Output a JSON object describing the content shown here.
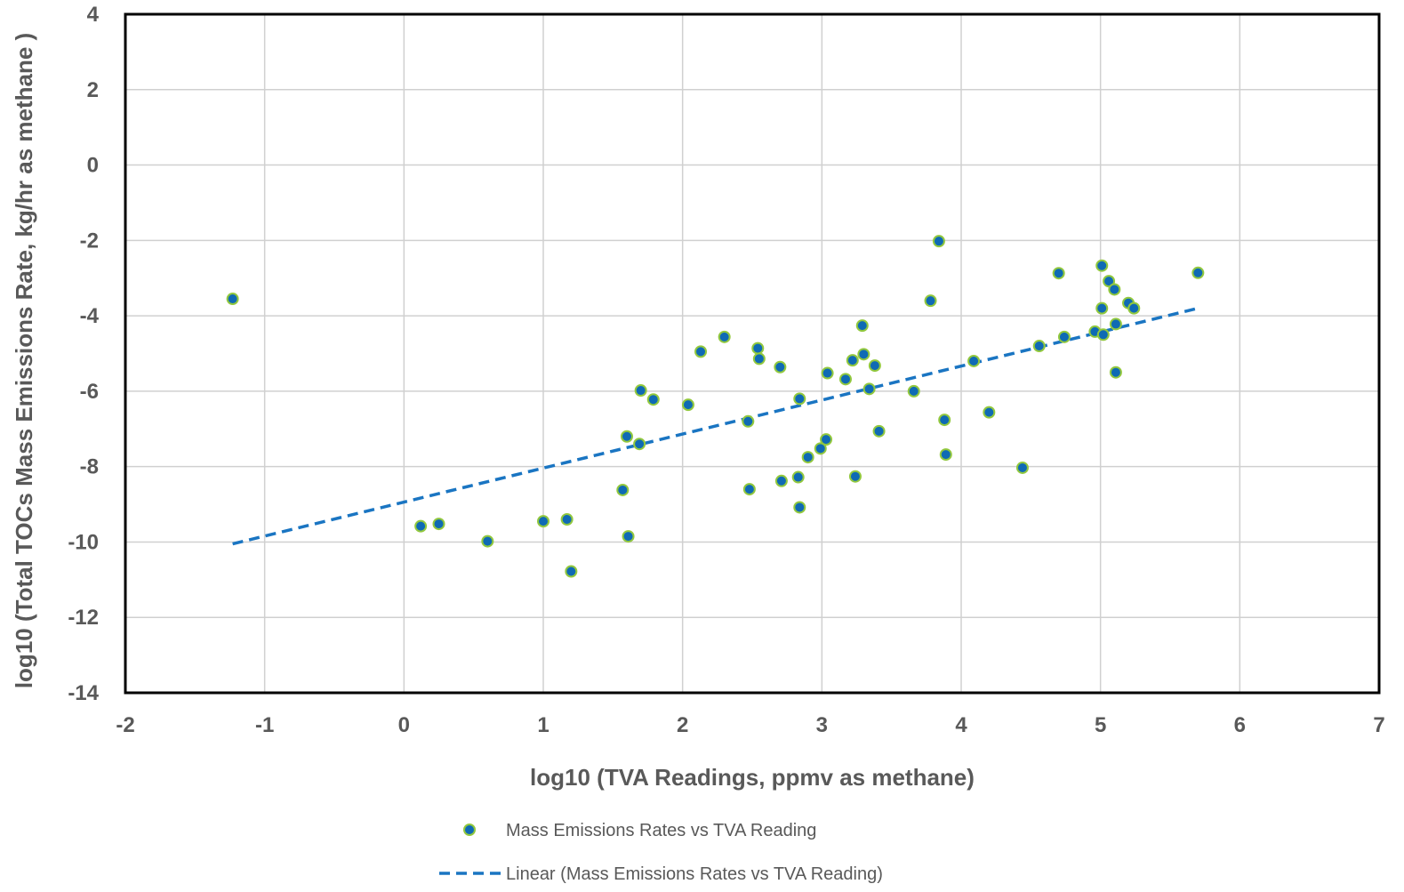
{
  "chart_data": {
    "type": "scatter",
    "title": "",
    "xlabel": "log10 (TVA Readings, ppmv as methane)",
    "ylabel": "log10 (Total TOCs Mass Emissions Rate, kg/hr as methane )",
    "xlim": [
      -2,
      7
    ],
    "ylim": [
      -14,
      4
    ],
    "x_ticks": [
      "-2",
      "-1",
      "0",
      "1",
      "2",
      "3",
      "4",
      "5",
      "6",
      "7"
    ],
    "y_ticks": [
      "4",
      "2",
      "0",
      "-2",
      "-4",
      "-6",
      "-8",
      "-10",
      "-12",
      "-14"
    ],
    "grid": true,
    "legend_position": "bottom",
    "colors": {
      "marker_fill": "#0f6ab4",
      "marker_stroke": "#92c83e",
      "trendline": "#1a75c2",
      "grid": "#d0d0d0",
      "plot_border": "#000000",
      "text": "#595959"
    },
    "series": [
      {
        "name": "Mass Emissions Rates vs TVA Reading",
        "points": [
          [
            -1.23,
            -3.55
          ],
          [
            0.12,
            -9.58
          ],
          [
            0.25,
            -9.52
          ],
          [
            0.6,
            -9.98
          ],
          [
            1.0,
            -9.45
          ],
          [
            1.17,
            -9.4
          ],
          [
            1.2,
            -10.78
          ],
          [
            1.57,
            -8.62
          ],
          [
            1.6,
            -7.2
          ],
          [
            1.61,
            -9.85
          ],
          [
            1.69,
            -7.4
          ],
          [
            1.7,
            -5.98
          ],
          [
            1.79,
            -6.22
          ],
          [
            2.04,
            -6.36
          ],
          [
            2.13,
            -4.95
          ],
          [
            2.3,
            -4.56
          ],
          [
            2.47,
            -6.8
          ],
          [
            2.48,
            -8.6
          ],
          [
            2.54,
            -4.86
          ],
          [
            2.55,
            -5.14
          ],
          [
            2.7,
            -5.36
          ],
          [
            2.71,
            -8.38
          ],
          [
            2.83,
            -8.28
          ],
          [
            2.84,
            -6.2
          ],
          [
            2.84,
            -9.08
          ],
          [
            2.9,
            -7.75
          ],
          [
            2.99,
            -7.52
          ],
          [
            3.03,
            -7.28
          ],
          [
            3.04,
            -5.52
          ],
          [
            3.17,
            -5.68
          ],
          [
            3.22,
            -5.18
          ],
          [
            3.24,
            -8.26
          ],
          [
            3.29,
            -4.26
          ],
          [
            3.3,
            -5.02
          ],
          [
            3.34,
            -5.94
          ],
          [
            3.38,
            -5.32
          ],
          [
            3.41,
            -7.06
          ],
          [
            3.66,
            -6.0
          ],
          [
            3.78,
            -3.6
          ],
          [
            3.84,
            -2.02
          ],
          [
            3.88,
            -6.76
          ],
          [
            3.89,
            -7.68
          ],
          [
            4.09,
            -5.2
          ],
          [
            4.2,
            -6.56
          ],
          [
            4.44,
            -8.03
          ],
          [
            4.56,
            -4.8
          ],
          [
            4.7,
            -2.87
          ],
          [
            4.74,
            -4.56
          ],
          [
            4.96,
            -4.42
          ],
          [
            5.01,
            -2.67
          ],
          [
            5.01,
            -3.8
          ],
          [
            5.02,
            -4.5
          ],
          [
            5.06,
            -3.08
          ],
          [
            5.1,
            -3.3
          ],
          [
            5.11,
            -4.22
          ],
          [
            5.11,
            -5.5
          ],
          [
            5.2,
            -3.66
          ],
          [
            5.24,
            -3.8
          ],
          [
            5.7,
            -2.86
          ]
        ]
      },
      {
        "name": "Linear (Mass Emissions Rates vs TVA Reading)",
        "type": "trendline",
        "points": [
          [
            -1.23,
            -10.05
          ],
          [
            5.7,
            -3.8
          ]
        ]
      }
    ]
  }
}
